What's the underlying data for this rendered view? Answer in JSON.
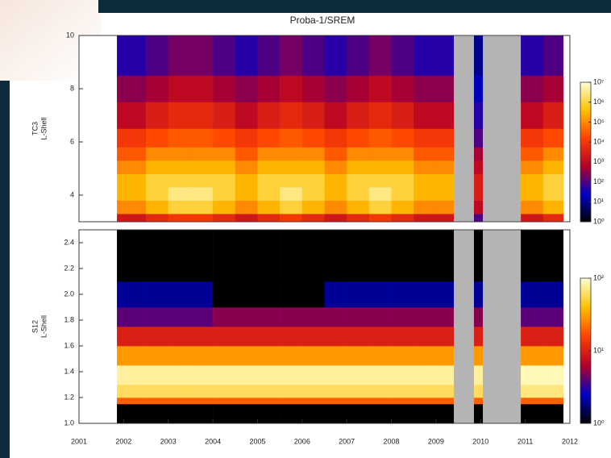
{
  "chart_data": [
    {
      "type": "heatmap",
      "title": "Proba-1/SREM",
      "y_label": [
        "TC3",
        "L-Shell"
      ],
      "xlim": [
        2001,
        2012
      ],
      "ylim": [
        3.0,
        10
      ],
      "yticks": [
        4,
        6,
        8,
        10
      ],
      "x_bins": [
        2001.85,
        2002.5,
        2003,
        2003.5,
        2004,
        2004.5,
        2005,
        2005.5,
        2006,
        2006.5,
        2007,
        2007.5,
        2008,
        2008.5,
        2009,
        2009.4,
        2009.85,
        2010.05,
        2010.9,
        2011.4,
        2011.85
      ],
      "y_bins": [
        3.0,
        3.3,
        3.8,
        4.3,
        4.8,
        5.3,
        5.8,
        6.5,
        7.5,
        8.5,
        10
      ],
      "z": [
        [
          2000,
          100000,
          300000,
          300000,
          100000,
          30000,
          10000,
          1000,
          300,
          50
        ],
        [
          5000,
          300000,
          1000000,
          1000000,
          300000,
          100000,
          20000,
          3000,
          500,
          100
        ],
        [
          10000,
          1000000,
          3000000,
          1000000,
          300000,
          100000,
          30000,
          5000,
          1000,
          200
        ],
        [
          10000,
          1000000,
          3000000,
          1000000,
          300000,
          100000,
          30000,
          5000,
          1000,
          200
        ],
        [
          5000,
          300000,
          1000000,
          1000000,
          300000,
          100000,
          20000,
          3000,
          500,
          100
        ],
        [
          2000,
          100000,
          300000,
          300000,
          100000,
          30000,
          10000,
          1000,
          300,
          50
        ],
        [
          5000,
          300000,
          1000000,
          1000000,
          300000,
          100000,
          20000,
          3000,
          500,
          100
        ],
        [
          10000,
          1000000,
          3000000,
          1000000,
          300000,
          100000,
          30000,
          5000,
          1000,
          200
        ],
        [
          5000,
          300000,
          1000000,
          1000000,
          300000,
          100000,
          20000,
          3000,
          500,
          100
        ],
        [
          2000,
          100000,
          300000,
          300000,
          100000,
          30000,
          10000,
          1000,
          300,
          50
        ],
        [
          5000,
          300000,
          1000000,
          1000000,
          300000,
          100000,
          20000,
          3000,
          500,
          100
        ],
        [
          10000,
          1000000,
          3000000,
          1000000,
          300000,
          100000,
          30000,
          5000,
          1000,
          200
        ],
        [
          5000,
          300000,
          1000000,
          1000000,
          300000,
          100000,
          20000,
          3000,
          500,
          100
        ],
        [
          2000,
          100000,
          300000,
          300000,
          100000,
          30000,
          10000,
          1000,
          300,
          50
        ],
        [
          2000,
          100000,
          300000,
          300000,
          100000,
          30000,
          10000,
          1000,
          300,
          50
        ],
        null,
        [
          100,
          1000,
          3000,
          3000,
          1000,
          500,
          100,
          50,
          20,
          10
        ],
        null,
        [
          2000,
          100000,
          300000,
          300000,
          100000,
          30000,
          10000,
          1000,
          300,
          50
        ],
        [
          5000,
          300000,
          1000000,
          1000000,
          300000,
          100000,
          20000,
          3000,
          500,
          100
        ]
      ],
      "zscale": "log",
      "zlim": [
        1,
        10000000
      ],
      "zticks": [
        {
          "value": 1,
          "label": "10⁰"
        },
        {
          "value": 10,
          "label": "10¹"
        },
        {
          "value": 100,
          "label": "10²"
        },
        {
          "value": 1000,
          "label": "10³"
        },
        {
          "value": 10000,
          "label": "10⁴"
        },
        {
          "value": 100000,
          "label": "10⁵"
        },
        {
          "value": 1000000,
          "label": "10⁶"
        },
        {
          "value": 10000000,
          "label": "10⁷"
        }
      ],
      "colormap": [
        "#000000",
        "#0000c8",
        "#b40028",
        "#ff4000",
        "#ffc000",
        "#ffffd0"
      ],
      "missing_color": "#b4b4b4"
    },
    {
      "type": "heatmap",
      "y_label": [
        "S12",
        "L-Shell"
      ],
      "xlim": [
        2001,
        2012
      ],
      "xticks": [
        2001,
        2002,
        2003,
        2004,
        2005,
        2006,
        2007,
        2008,
        2009,
        2010,
        2011,
        2012
      ],
      "ylim": [
        1.0,
        2.5
      ],
      "yticks": [
        {
          "value": 1.0,
          "label": "1.0"
        },
        1.2,
        1.4,
        1.6,
        1.8,
        {
          "value": 2.0,
          "label": "2.0"
        },
        2.2,
        2.4
      ],
      "x_bins": [
        2001.85,
        2002.5,
        2003,
        2003.5,
        2004,
        2004.5,
        2005,
        2005.5,
        2006,
        2006.5,
        2007,
        2007.5,
        2008,
        2008.5,
        2009,
        2009.4,
        2009.85,
        2010.05,
        2010.9,
        2011.4,
        2011.85
      ],
      "y_bins": [
        1.0,
        1.1,
        1.15,
        1.2,
        1.3,
        1.45,
        1.6,
        1.75,
        1.9,
        2.1,
        2.5
      ],
      "z": [
        [
          1,
          1,
          20,
          60,
          80,
          30,
          10,
          4,
          2,
          1
        ],
        [
          1,
          1,
          20,
          60,
          80,
          30,
          10,
          4,
          2,
          1
        ],
        [
          1,
          1,
          20,
          60,
          80,
          30,
          10,
          4,
          2,
          1
        ],
        [
          1,
          1,
          20,
          60,
          80,
          30,
          10,
          4,
          2,
          1
        ],
        [
          1,
          1,
          20,
          60,
          80,
          30,
          10,
          5,
          1,
          1
        ],
        [
          1,
          1,
          20,
          60,
          80,
          30,
          10,
          5,
          1,
          1
        ],
        [
          1,
          1,
          20,
          60,
          80,
          30,
          10,
          5,
          1,
          1
        ],
        [
          1,
          1,
          20,
          60,
          80,
          30,
          10,
          5,
          1,
          1
        ],
        [
          1,
          1,
          20,
          60,
          80,
          30,
          10,
          5,
          1,
          1
        ],
        [
          1,
          1,
          20,
          60,
          80,
          30,
          10,
          5,
          2,
          1
        ],
        [
          1,
          1,
          20,
          60,
          80,
          30,
          10,
          5,
          2,
          1
        ],
        [
          1,
          1,
          20,
          60,
          80,
          30,
          10,
          5,
          2,
          1
        ],
        [
          1,
          1,
          20,
          60,
          80,
          30,
          10,
          5,
          2,
          1
        ],
        [
          1,
          1,
          20,
          60,
          80,
          30,
          10,
          5,
          2,
          1
        ],
        [
          1,
          1,
          20,
          60,
          80,
          30,
          10,
          5,
          2,
          1
        ],
        null,
        [
          1,
          1,
          20,
          60,
          80,
          30,
          10,
          5,
          2,
          1
        ],
        null,
        [
          1,
          1,
          20,
          70,
          90,
          30,
          10,
          4,
          2,
          1
        ],
        [
          1,
          1,
          20,
          70,
          90,
          30,
          10,
          4,
          2,
          1
        ]
      ],
      "zscale": "log",
      "zlim": [
        1,
        100
      ],
      "zticks": [
        {
          "value": 1,
          "label": "10⁰"
        },
        {
          "value": 10,
          "label": "10¹"
        },
        {
          "value": 100,
          "label": "10²"
        }
      ],
      "colormap": [
        "#000000",
        "#0000c8",
        "#b40028",
        "#ff4000",
        "#ffc000",
        "#ffffd0"
      ],
      "missing_color": "#b4b4b4"
    }
  ]
}
